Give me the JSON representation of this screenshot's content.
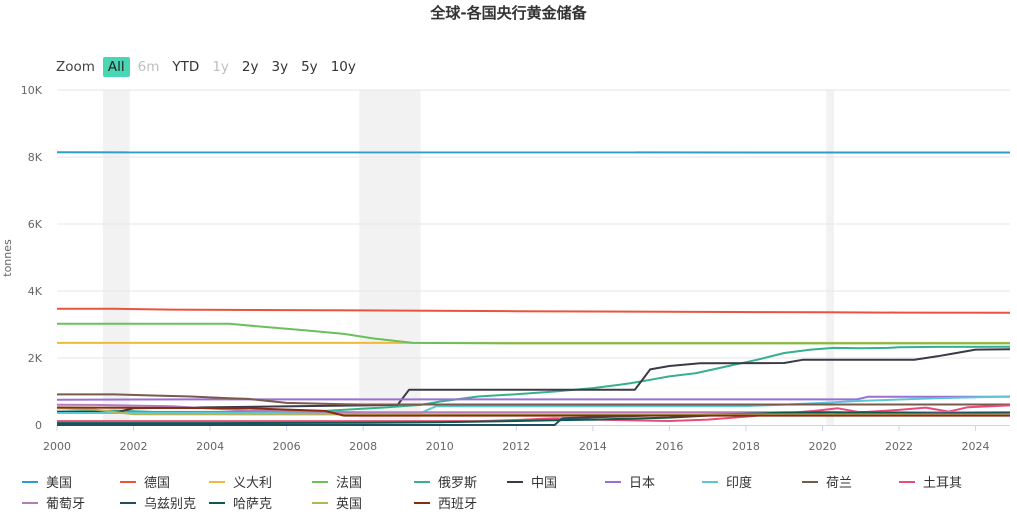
{
  "title": "全球-各国央行黄金储备",
  "range_selector": {
    "label": "Zoom",
    "buttons": [
      {
        "label": "All",
        "state": "active"
      },
      {
        "label": "6m",
        "state": "disabled"
      },
      {
        "label": "YTD",
        "state": "normal"
      },
      {
        "label": "1y",
        "state": "disabled"
      },
      {
        "label": "2y",
        "state": "normal"
      },
      {
        "label": "3y",
        "state": "normal"
      },
      {
        "label": "5y",
        "state": "normal"
      },
      {
        "label": "10y",
        "state": "normal"
      }
    ]
  },
  "chart_data": {
    "type": "line",
    "title": "全球-各国央行黄金储备",
    "xlabel": "",
    "ylabel": "tonnes",
    "xlim": [
      2000,
      2024.9
    ],
    "ylim": [
      0,
      10000
    ],
    "x_ticks": [
      2000,
      2002,
      2004,
      2006,
      2008,
      2010,
      2012,
      2014,
      2016,
      2018,
      2020,
      2022,
      2024
    ],
    "y_ticks": [
      {
        "value": 0,
        "label": "0"
      },
      {
        "value": 2000,
        "label": "2K"
      },
      {
        "value": 4000,
        "label": "4K"
      },
      {
        "value": 6000,
        "label": "6K"
      },
      {
        "value": 8000,
        "label": "8K"
      },
      {
        "value": 10000,
        "label": "10K"
      }
    ],
    "grid": true,
    "legend_position": "bottom",
    "shaded_periods": [
      [
        2001.2,
        2001.9
      ],
      [
        2007.9,
        2009.5
      ],
      [
        2020.1,
        2020.3
      ]
    ],
    "series": [
      {
        "name": "美国",
        "color": "#2b9fc7",
        "points": [
          [
            2000,
            8140
          ],
          [
            2024.9,
            8133
          ]
        ]
      },
      {
        "name": "德国",
        "color": "#e8553c",
        "points": [
          [
            2000,
            3470
          ],
          [
            2001.5,
            3468
          ],
          [
            2003,
            3445
          ],
          [
            2008,
            3420
          ],
          [
            2012,
            3396
          ],
          [
            2016,
            3380
          ],
          [
            2020,
            3363
          ],
          [
            2022,
            3355
          ],
          [
            2024.9,
            3351
          ]
        ]
      },
      {
        "name": "义大利",
        "color": "#f0b93a",
        "points": [
          [
            2000,
            2452
          ],
          [
            2024.9,
            2452
          ]
        ]
      },
      {
        "name": "法国",
        "color": "#6cc05b",
        "points": [
          [
            2000,
            3025
          ],
          [
            2004.5,
            3024
          ],
          [
            2005.3,
            2940
          ],
          [
            2006.5,
            2825
          ],
          [
            2007.5,
            2720
          ],
          [
            2008.3,
            2580
          ],
          [
            2009.3,
            2450
          ],
          [
            2012,
            2435
          ],
          [
            2024.9,
            2437
          ]
        ]
      },
      {
        "name": "俄罗斯",
        "color": "#36b08e",
        "points": [
          [
            2000,
            400
          ],
          [
            2001.5,
            430
          ],
          [
            2002.5,
            390
          ],
          [
            2006,
            390
          ],
          [
            2007,
            420
          ],
          [
            2008.5,
            520
          ],
          [
            2009.5,
            600
          ],
          [
            2010,
            700
          ],
          [
            2011,
            850
          ],
          [
            2012,
            920
          ],
          [
            2013,
            1000
          ],
          [
            2014,
            1100
          ],
          [
            2014.7,
            1200
          ],
          [
            2015,
            1250
          ],
          [
            2015.5,
            1350
          ],
          [
            2016,
            1450
          ],
          [
            2016.7,
            1550
          ],
          [
            2017.5,
            1750
          ],
          [
            2018.3,
            1950
          ],
          [
            2019,
            2150
          ],
          [
            2019.7,
            2250
          ],
          [
            2020.3,
            2300
          ],
          [
            2021,
            2290
          ],
          [
            2021.7,
            2300
          ],
          [
            2022,
            2320
          ],
          [
            2023,
            2330
          ],
          [
            2024.9,
            2335
          ]
        ]
      },
      {
        "name": "中国",
        "color": "#3a3a48",
        "points": [
          [
            2000,
            395
          ],
          [
            2001.6,
            395
          ],
          [
            2002,
            500
          ],
          [
            2008.9,
            600
          ],
          [
            2009.2,
            1054
          ],
          [
            2015.1,
            1054
          ],
          [
            2015.5,
            1660
          ],
          [
            2016,
            1760
          ],
          [
            2016.8,
            1842
          ],
          [
            2019,
            1850
          ],
          [
            2019.5,
            1950
          ],
          [
            2022.4,
            1950
          ],
          [
            2023,
            2050
          ],
          [
            2023.5,
            2150
          ],
          [
            2024,
            2250
          ],
          [
            2024.9,
            2264
          ]
        ]
      },
      {
        "name": "日本",
        "color": "#9b6fd3",
        "points": [
          [
            2000,
            754
          ],
          [
            2003.5,
            765
          ],
          [
            2020.9,
            765
          ],
          [
            2021.2,
            846
          ],
          [
            2024.9,
            846
          ]
        ]
      },
      {
        "name": "印度",
        "color": "#5bc7d6",
        "points": [
          [
            2000,
            357
          ],
          [
            2009.5,
            358
          ],
          [
            2009.9,
            558
          ],
          [
            2018,
            565
          ],
          [
            2019,
            610
          ],
          [
            2020,
            660
          ],
          [
            2021,
            720
          ],
          [
            2022,
            760
          ],
          [
            2023,
            800
          ],
          [
            2024.9,
            854
          ]
        ]
      },
      {
        "name": "荷兰",
        "color": "#7a5a4a",
        "points": [
          [
            2000,
            912
          ],
          [
            2001.5,
            912
          ],
          [
            2002.5,
            880
          ],
          [
            2003.5,
            850
          ],
          [
            2004.5,
            800
          ],
          [
            2005,
            780
          ],
          [
            2006,
            660
          ],
          [
            2007.5,
            620
          ],
          [
            2008,
            612
          ],
          [
            2024.9,
            612
          ]
        ]
      },
      {
        "name": "土耳其",
        "color": "#e84b7a",
        "points": [
          [
            2000,
            116
          ],
          [
            2011,
            116
          ],
          [
            2012,
            150
          ],
          [
            2013,
            200
          ],
          [
            2014,
            160
          ],
          [
            2016,
            120
          ],
          [
            2017,
            160
          ],
          [
            2018,
            250
          ],
          [
            2019,
            350
          ],
          [
            2019.8,
            420
          ],
          [
            2020.4,
            500
          ],
          [
            2021,
            380
          ],
          [
            2022,
            450
          ],
          [
            2022.7,
            520
          ],
          [
            2023.3,
            400
          ],
          [
            2023.8,
            530
          ],
          [
            2024.9,
            585
          ]
        ]
      },
      {
        "name": "葡萄牙",
        "color": "#b57bbb",
        "points": [
          [
            2000,
            607
          ],
          [
            2001,
            600
          ],
          [
            2003,
            560
          ],
          [
            2005,
            430
          ],
          [
            2007,
            390
          ],
          [
            2008,
            382
          ],
          [
            2024.9,
            382
          ]
        ]
      },
      {
        "name": "乌兹别克",
        "color": "#1f4e63",
        "points": [
          [
            2000,
            0
          ],
          [
            2013,
            0
          ],
          [
            2013.2,
            200
          ],
          [
            2016,
            300
          ],
          [
            2019,
            350
          ],
          [
            2020.3,
            320
          ],
          [
            2021,
            380
          ],
          [
            2023,
            350
          ],
          [
            2024.9,
            370
          ]
        ]
      },
      {
        "name": "哈萨克",
        "color": "#0b5a4a",
        "points": [
          [
            2000,
            56
          ],
          [
            2004,
            56
          ],
          [
            2008,
            70
          ],
          [
            2010,
            80
          ],
          [
            2011,
            100
          ],
          [
            2012,
            120
          ],
          [
            2013,
            140
          ],
          [
            2014,
            160
          ],
          [
            2015,
            190
          ],
          [
            2016,
            220
          ],
          [
            2017,
            280
          ],
          [
            2018,
            330
          ],
          [
            2019,
            370
          ],
          [
            2020,
            380
          ],
          [
            2021,
            370
          ],
          [
            2022,
            360
          ],
          [
            2023,
            300
          ],
          [
            2024.9,
            290
          ]
        ]
      },
      {
        "name": "英国",
        "color": "#b4b45a",
        "points": [
          [
            2000,
            500
          ],
          [
            2001,
            460
          ],
          [
            2002,
            320
          ],
          [
            2024.9,
            310
          ]
        ]
      },
      {
        "name": "西班牙",
        "color": "#8a2a12",
        "points": [
          [
            2000,
            523
          ],
          [
            2005,
            500
          ],
          [
            2007,
            420
          ],
          [
            2007.5,
            282
          ],
          [
            2024.9,
            282
          ]
        ]
      }
    ]
  }
}
